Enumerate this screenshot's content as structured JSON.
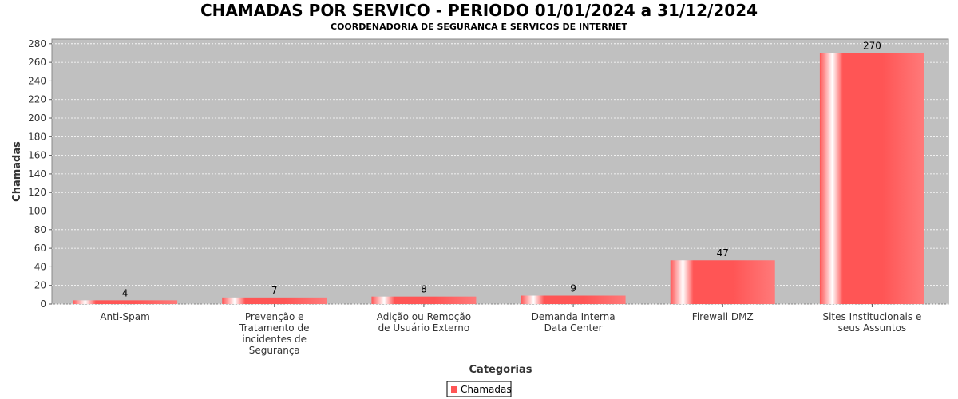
{
  "chart_data": {
    "type": "bar",
    "title": "CHAMADAS POR SERVICO - PERIODO 01/01/2024 a 31/12/2024",
    "subtitle": "COORDENADORIA DE SEGURANCA E SERVICOS DE INTERNET",
    "xlabel": "Categorias",
    "ylabel": "Chamadas",
    "ylim": [
      0,
      285
    ],
    "yticks": [
      0,
      20,
      40,
      60,
      80,
      100,
      120,
      140,
      160,
      180,
      200,
      220,
      240,
      260,
      280
    ],
    "grid": true,
    "legend_position": "bottom",
    "categories": [
      [
        "Anti-Spam"
      ],
      [
        "Prevenção e",
        "Tratamento de",
        "incidentes de",
        "Segurança"
      ],
      [
        "Adição ou Remoção",
        "de Usuário Externo"
      ],
      [
        "Demanda Interna",
        "Data Center"
      ],
      [
        "Firewall DMZ"
      ],
      [
        "Sites Institucionais e",
        "seus Assuntos"
      ]
    ],
    "series": [
      {
        "name": "Chamadas",
        "values": [
          4,
          7,
          8,
          9,
          47,
          270
        ],
        "color": "#ff5555"
      }
    ],
    "plot_background": "#c0c0c0"
  }
}
